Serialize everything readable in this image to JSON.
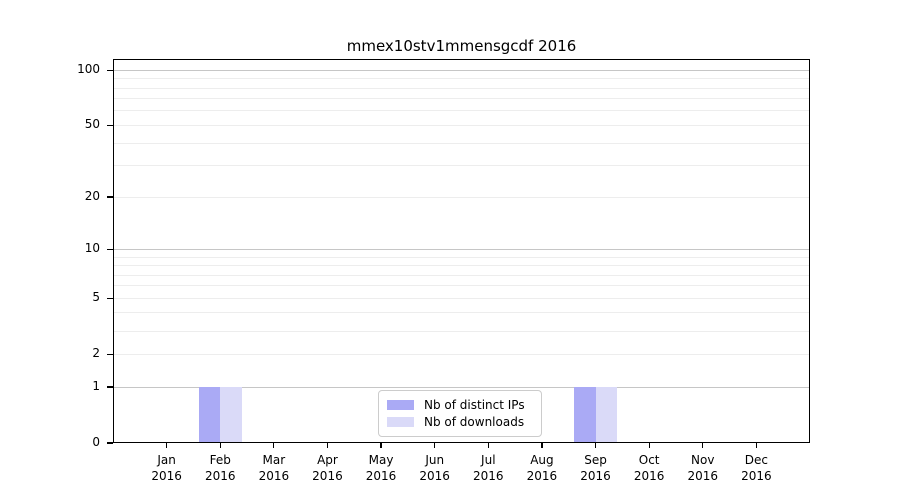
{
  "chart_data": {
    "type": "bar",
    "title": "mmex10stv1mmensgcdf 2016",
    "categories": [
      "Jan",
      "Feb",
      "Mar",
      "Apr",
      "May",
      "Jun",
      "Jul",
      "Aug",
      "Sep",
      "Oct",
      "Nov",
      "Dec"
    ],
    "x_tick_second_line": "2016",
    "series": [
      {
        "name": "Nb of distinct IPs",
        "color": "#aaaaf5",
        "values": [
          0,
          1,
          0,
          0,
          0,
          0,
          0,
          0,
          1,
          0,
          0,
          0
        ]
      },
      {
        "name": "Nb of downloads",
        "color": "#dadaf8",
        "values": [
          0,
          1,
          0,
          0,
          0,
          0,
          0,
          0,
          1,
          0,
          0,
          0
        ]
      }
    ],
    "yscale": "log1p",
    "ylim": [
      0,
      114.3
    ],
    "yticks_labeled": [
      0,
      1,
      2,
      5,
      10,
      20,
      50,
      100
    ],
    "gridlines_major": [
      1,
      10,
      100
    ],
    "gridlines_minor": [
      2,
      3,
      4,
      5,
      6,
      7,
      8,
      9,
      20,
      30,
      40,
      50,
      60,
      70,
      80,
      90
    ],
    "legend_position": "lower center",
    "grid": true,
    "colors": {
      "axis": "#000000",
      "grid_major": "#c6c6c6",
      "grid_minor": "#ededed",
      "legend_border": "#cccccc"
    }
  }
}
